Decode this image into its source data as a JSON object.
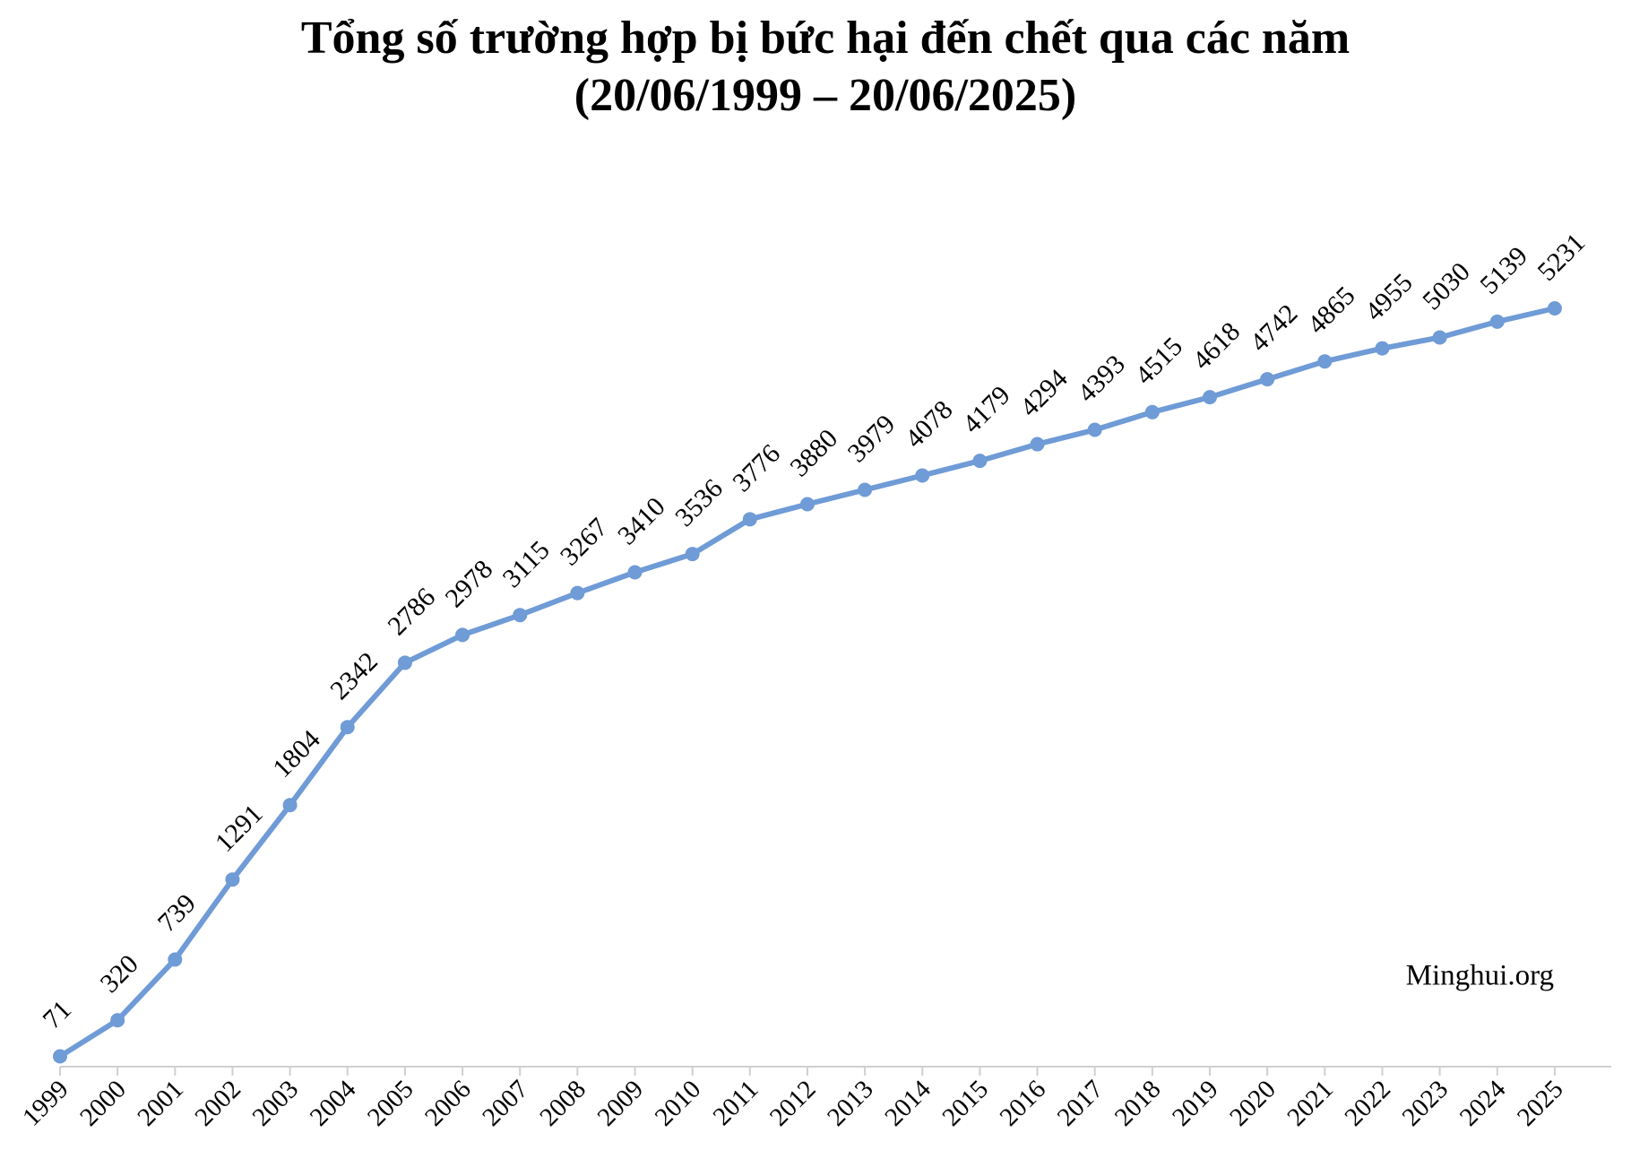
{
  "chart_data": {
    "type": "line",
    "title": "Tổng số trường hợp bị bức hại đến chết qua các năm",
    "subtitle": "(20/06/1999 – 20/06/2025)",
    "annotation": "Minghui.org",
    "categories": [
      "1999",
      "2000",
      "2001",
      "2002",
      "2003",
      "2004",
      "2005",
      "2006",
      "2007",
      "2008",
      "2009",
      "2010",
      "2011",
      "2012",
      "2013",
      "2014",
      "2015",
      "2016",
      "2017",
      "2018",
      "2019",
      "2020",
      "2021",
      "2022",
      "2023",
      "2024",
      "2025"
    ],
    "values": [
      71,
      320,
      739,
      1291,
      1804,
      2342,
      2786,
      2978,
      3115,
      3267,
      3410,
      3536,
      3776,
      3880,
      3979,
      4078,
      4179,
      4294,
      4393,
      4515,
      4618,
      4742,
      4865,
      4955,
      5030,
      5139,
      5231
    ],
    "color": "#6f9bd6"
  }
}
